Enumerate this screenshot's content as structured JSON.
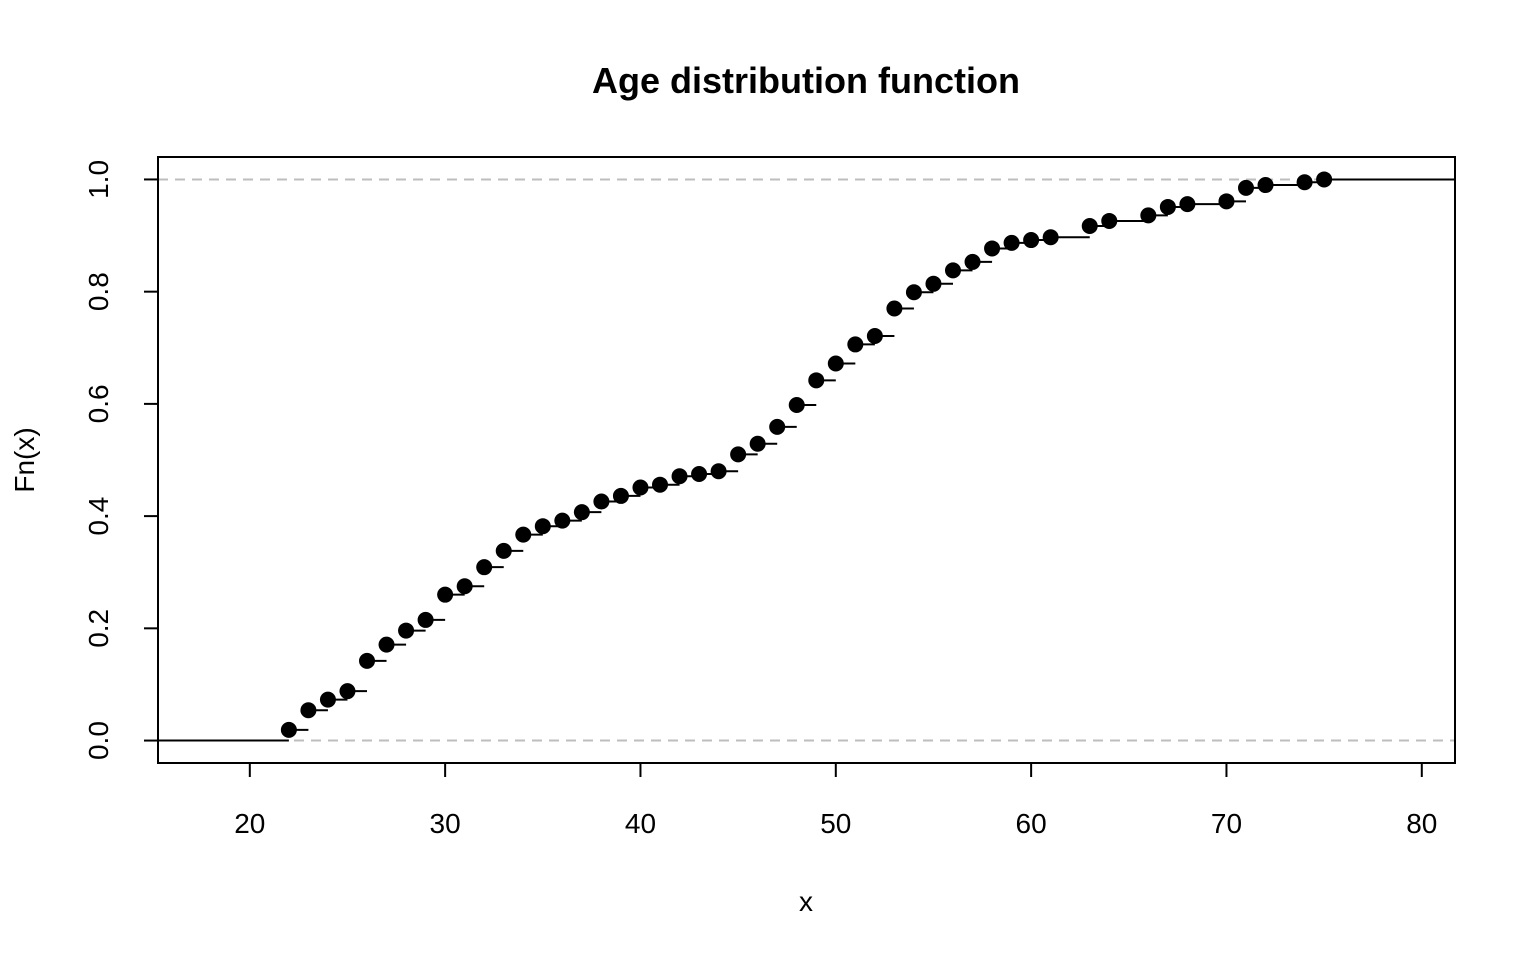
{
  "chart_data": {
    "type": "line",
    "subtype": "ecdf-step",
    "title": "Age distribution function",
    "xlabel": "x",
    "ylabel": "Fn(x)",
    "xlim": [
      15.3,
      81.7
    ],
    "ylim": [
      -0.04,
      1.04
    ],
    "x_ticks": [
      "20",
      "30",
      "40",
      "50",
      "60",
      "70",
      "80"
    ],
    "y_ticks": [
      "0.0",
      "0.2",
      "0.4",
      "0.6",
      "0.8",
      "1.0"
    ],
    "reference_lines": [
      0,
      1
    ],
    "grid": false,
    "legend": "none",
    "colors": {
      "points": "#000000",
      "steps": "#000000",
      "reference": "#bebebe",
      "frame": "#000000"
    },
    "series": [
      {
        "x": [
          22,
          23,
          24,
          25,
          26,
          27,
          28,
          29,
          30,
          31,
          32,
          33,
          34,
          35,
          36,
          37,
          38,
          39,
          40,
          41,
          42,
          43,
          44,
          45,
          46,
          47,
          48,
          49,
          50,
          51,
          52,
          53,
          54,
          55,
          56,
          57,
          58,
          59,
          60,
          61,
          63,
          64,
          66,
          67,
          68,
          70,
          71,
          72,
          74,
          75
        ],
        "y": [
          0.019,
          0.054,
          0.073,
          0.088,
          0.142,
          0.171,
          0.196,
          0.215,
          0.26,
          0.275,
          0.309,
          0.338,
          0.367,
          0.382,
          0.392,
          0.407,
          0.426,
          0.436,
          0.451,
          0.456,
          0.471,
          0.475,
          0.48,
          0.51,
          0.529,
          0.559,
          0.598,
          0.642,
          0.672,
          0.706,
          0.721,
          0.77,
          0.799,
          0.814,
          0.838,
          0.853,
          0.877,
          0.887,
          0.892,
          0.897,
          0.917,
          0.926,
          0.936,
          0.951,
          0.956,
          0.961,
          0.985,
          0.99,
          0.995,
          1.0
        ]
      }
    ]
  }
}
